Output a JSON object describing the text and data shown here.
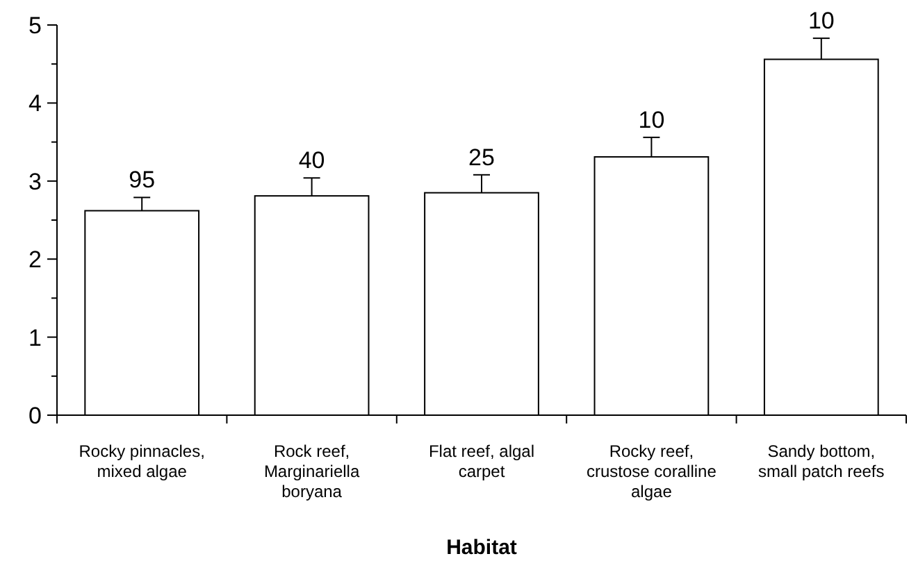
{
  "chart_data": {
    "type": "bar",
    "xlabel": "Habitat",
    "categories": [
      "Rocky pinnacles, mixed algae",
      "Rock reef, Marginariella boryana",
      "Flat reef, algal carpet",
      "Rocky reef, crustose coralline algae",
      "Sandy bottom, small patch reefs"
    ],
    "values": [
      2.62,
      2.81,
      2.85,
      3.31,
      4.56
    ],
    "errors": [
      0.17,
      0.23,
      0.23,
      0.25,
      0.27
    ],
    "color": "#ffffff",
    "ylim": [
      0,
      5
    ],
    "yticks": [
      0,
      {
        "value": 0.5,
        "label": null
      },
      1,
      {
        "value": 1.5,
        "label": null
      },
      2,
      {
        "value": 2.5,
        "label": null
      },
      3,
      {
        "value": 3.5,
        "label": null
      },
      4,
      {
        "value": 4.5,
        "label": null
      },
      5
    ],
    "grid": false,
    "annotations": [
      {
        "text": "95",
        "x": "Rocky pinnacles, mixed algae",
        "y": 2.79
      },
      {
        "text": "40",
        "x": "Rock reef, Marginariella boryana",
        "y": 3.04
      },
      {
        "text": "25",
        "x": "Flat reef, algal carpet",
        "y": 3.08
      },
      {
        "text": "10",
        "x": "Rocky reef, crustose coralline algae",
        "y": 3.56
      },
      {
        "text": "10",
        "x": "Sandy bottom, small patch reefs",
        "y": 4.83
      }
    ]
  }
}
